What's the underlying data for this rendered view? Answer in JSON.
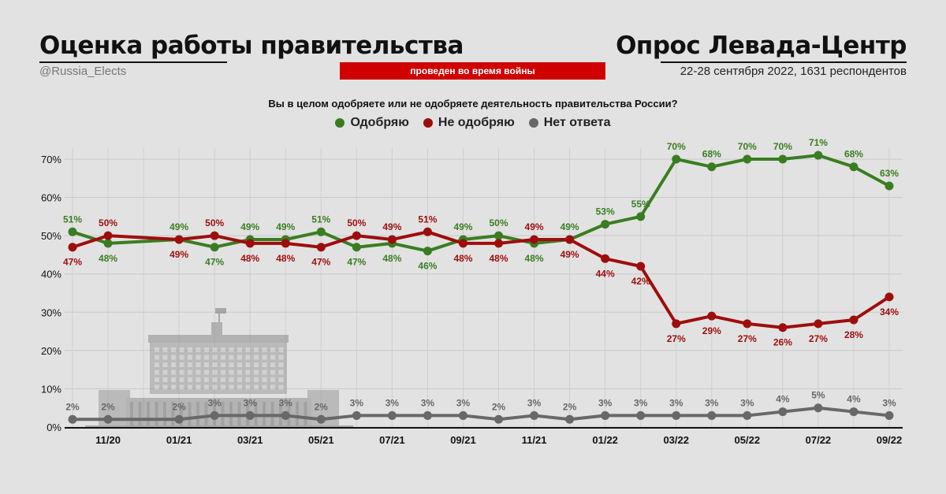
{
  "header": {
    "title_left": "Оценка работы правительства",
    "handle": "@Russia_Elects",
    "title_right": "Опрос Левада-Центр",
    "subtitle_right": "22-28 сентября 2022, 1631 респондентов",
    "badge": "проведен во время войны",
    "question": "Вы в целом одобряете или не одобряете деятельность правительства России?"
  },
  "colors": {
    "approve": "#3a7d21",
    "disapprove": "#9e0d0d",
    "no_answer": "#686868",
    "badge": "#d00000"
  },
  "chart_data": {
    "type": "line",
    "x": [
      "10/20",
      "11/20",
      "12/20",
      "01/21",
      "02/21",
      "03/21",
      "04/21",
      "05/21",
      "06/21",
      "07/21",
      "08/21",
      "09/21",
      "10/21",
      "11/21",
      "12/21",
      "01/22",
      "02/22",
      "03/22",
      "04/22",
      "05/22",
      "06/22",
      "07/22",
      "08/22",
      "09/22"
    ],
    "x_tick_labels": [
      "11/20",
      "01/21",
      "03/21",
      "05/21",
      "07/21",
      "09/21",
      "11/21",
      "01/22",
      "03/22",
      "05/22",
      "07/22",
      "09/22"
    ],
    "missing_x": [
      "12/20"
    ],
    "series": [
      {
        "name": "Одобряю",
        "color": "#3a7d21",
        "values": [
          51,
          48,
          null,
          49,
          47,
          49,
          49,
          51,
          47,
          48,
          46,
          49,
          50,
          48,
          49,
          53,
          55,
          70,
          68,
          70,
          70,
          71,
          68,
          63
        ]
      },
      {
        "name": "Не одобряю",
        "color": "#9e0d0d",
        "values": [
          47,
          50,
          null,
          49,
          50,
          48,
          48,
          47,
          50,
          49,
          51,
          48,
          48,
          49,
          49,
          44,
          42,
          27,
          29,
          27,
          26,
          27,
          28,
          34
        ]
      },
      {
        "name": "Нет ответа",
        "color": "#686868",
        "values": [
          2,
          2,
          null,
          2,
          3,
          3,
          3,
          2,
          3,
          3,
          3,
          3,
          2,
          3,
          2,
          3,
          3,
          3,
          3,
          3,
          4,
          5,
          4,
          3
        ]
      }
    ],
    "y_ticks": [
      "0%",
      "10%",
      "20%",
      "30%",
      "40%",
      "50%",
      "60%",
      "70%"
    ],
    "ylim": [
      0,
      73
    ],
    "grid": true,
    "legend_position": "top-center"
  }
}
